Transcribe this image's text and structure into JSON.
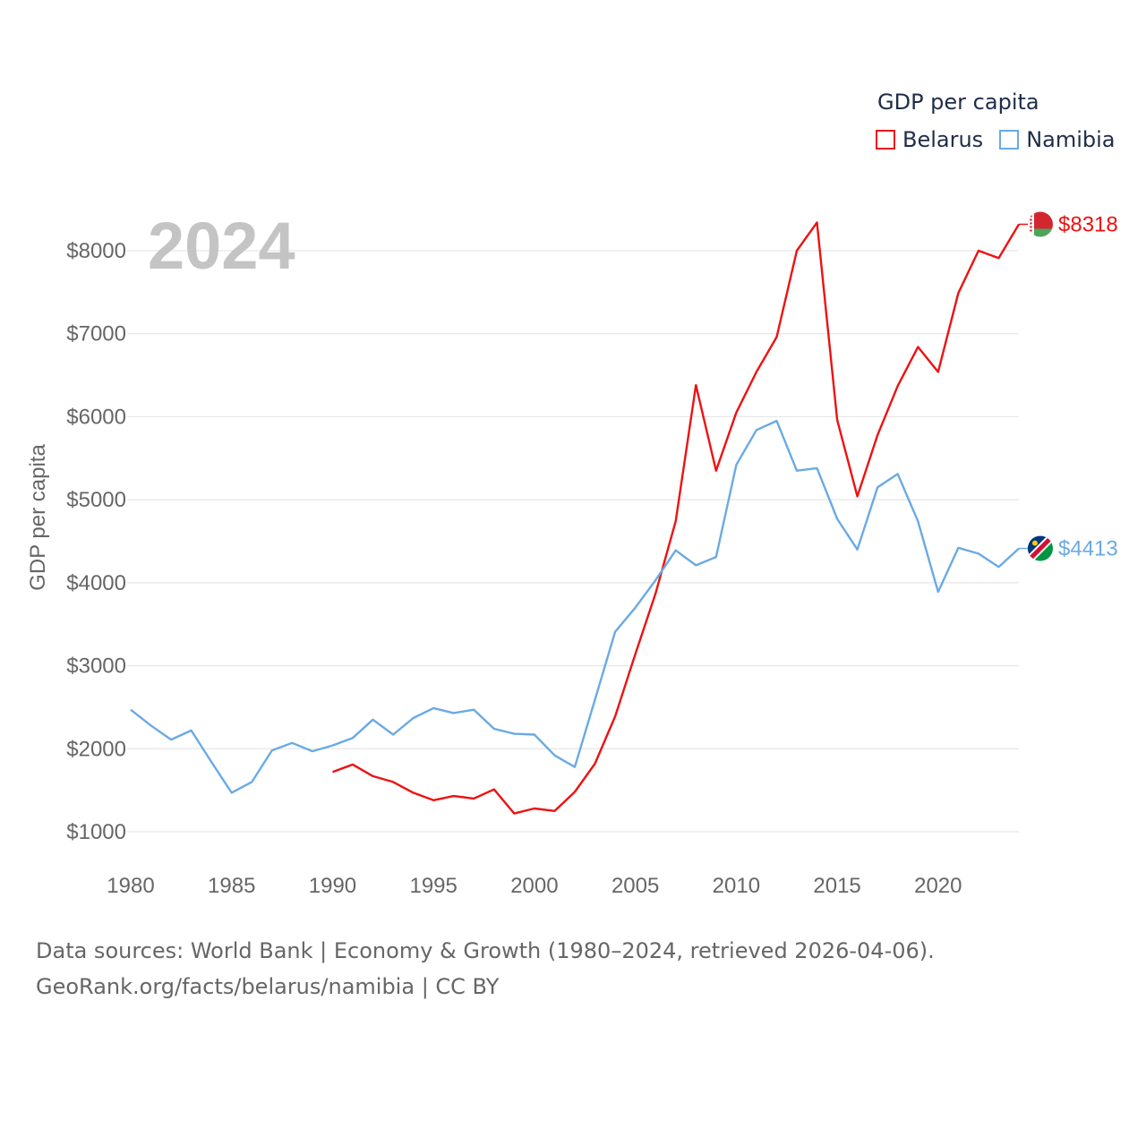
{
  "legend": {
    "title": "GDP per capita",
    "items": [
      {
        "label": "Belarus",
        "color": "#ee1111"
      },
      {
        "label": "Namibia",
        "color": "#6aaae4"
      }
    ]
  },
  "footer": {
    "line1": "Data sources: World Bank | Economy & Growth (1980–2024, retrieved 2026-04-06).",
    "line2": "GeoRank.org/facts/belarus/namibia | CC BY"
  },
  "chart_data": {
    "type": "line",
    "year_label": "2024",
    "ylabel": "GDP per capita",
    "xlim": [
      1980,
      2024
    ],
    "ylim": [
      1000,
      8500
    ],
    "x_ticks": [
      1980,
      1985,
      1990,
      1995,
      2000,
      2005,
      2010,
      2015,
      2020
    ],
    "x_tick_labels": [
      "1980",
      "1985",
      "1990",
      "1995",
      "2000",
      "2005",
      "2010",
      "2015",
      "2020"
    ],
    "y_ticks": [
      1000,
      2000,
      3000,
      4000,
      5000,
      6000,
      7000,
      8000
    ],
    "y_tick_labels": [
      "$1000",
      "$2000",
      "$3000",
      "$4000",
      "$5000",
      "$6000",
      "$7000",
      "$8000"
    ],
    "series": [
      {
        "name": "Belarus",
        "color": "#ee1111",
        "end_label": "$8318",
        "flag": "belarus-flag",
        "x": [
          1990,
          1991,
          1992,
          1993,
          1994,
          1995,
          1996,
          1997,
          1998,
          1999,
          2000,
          2001,
          2002,
          2003,
          2004,
          2005,
          2006,
          2007,
          2008,
          2009,
          2010,
          2011,
          2012,
          2013,
          2014,
          2015,
          2016,
          2017,
          2018,
          2019,
          2020,
          2021,
          2022,
          2023,
          2024
        ],
        "values": [
          1720,
          1810,
          1670,
          1600,
          1470,
          1380,
          1430,
          1400,
          1510,
          1220,
          1280,
          1250,
          1480,
          1820,
          2390,
          3140,
          3870,
          4740,
          6380,
          5350,
          6050,
          6540,
          6960,
          8000,
          8340,
          5960,
          5040,
          5780,
          6370,
          6840,
          6540,
          7490,
          8000,
          7910,
          8318
        ]
      },
      {
        "name": "Namibia",
        "color": "#6aaae4",
        "end_label": "$4413",
        "flag": "namibia-flag",
        "x": [
          1980,
          1981,
          1982,
          1983,
          1984,
          1985,
          1986,
          1987,
          1988,
          1989,
          1990,
          1991,
          1992,
          1993,
          1994,
          1995,
          1996,
          1997,
          1998,
          1999,
          2000,
          2001,
          2002,
          2003,
          2004,
          2005,
          2006,
          2007,
          2008,
          2009,
          2010,
          2011,
          2012,
          2013,
          2014,
          2015,
          2016,
          2017,
          2018,
          2019,
          2020,
          2021,
          2022,
          2023,
          2024
        ],
        "values": [
          2470,
          2280,
          2110,
          2220,
          1840,
          1470,
          1600,
          1980,
          2070,
          1970,
          2040,
          2130,
          2350,
          2170,
          2370,
          2490,
          2430,
          2470,
          2240,
          2180,
          2170,
          1920,
          1780,
          2590,
          3410,
          3700,
          4030,
          4390,
          4210,
          4310,
          5420,
          5840,
          5950,
          5350,
          5380,
          4770,
          4400,
          5150,
          5310,
          4740,
          3890,
          4420,
          4350,
          4190,
          4413
        ]
      }
    ]
  }
}
